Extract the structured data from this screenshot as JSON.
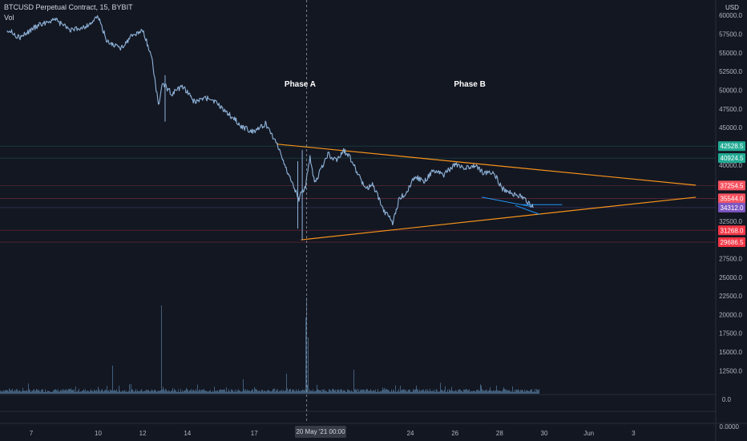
{
  "header": {
    "symbol_line": "BTCUSD Perpetual Contract, 15, BYBIT",
    "volume_label": "Vol"
  },
  "currency": "USD",
  "crosshair_date_label": "20 May '21  00:00",
  "chart_data": {
    "type": "line",
    "title": "BTCUSD Perpetual Contract, 15, BYBIT",
    "yaxis_ticks": [
      60000,
      57500,
      55000,
      52500,
      50000,
      47500,
      45000,
      42500,
      40000,
      37500,
      35000,
      32500,
      30000,
      27500,
      25000,
      22500,
      20000,
      17500,
      15000,
      12500
    ],
    "ylim": [
      10800,
      61000
    ],
    "xaxis_ticks": [
      "7",
      "10",
      "12",
      "14",
      "17",
      "24",
      "26",
      "28",
      "30",
      "Jun",
      "3"
    ],
    "xlim_days_may": [
      5.9,
      36.8
    ],
    "volume_axis_ticks": [
      "0.0",
      "0.0000"
    ],
    "price_series_approx": {
      "x_day": [
        5.9,
        6.5,
        7.2,
        8.0,
        8.8,
        9.5,
        10.0,
        10.4,
        11.0,
        11.5,
        12.0,
        12.4,
        12.7,
        12.9,
        13.3,
        13.8,
        14.3,
        15.0,
        15.8,
        16.5,
        17.0,
        17.5,
        18.0,
        18.5,
        19.0,
        19.3,
        19.5,
        19.7,
        19.8,
        20.0,
        20.3,
        20.7,
        21.0,
        21.3,
        21.7,
        22.0,
        22.3,
        22.8,
        23.2,
        23.5,
        23.8,
        24.2,
        24.6,
        25.0,
        25.5,
        26.0,
        26.5,
        27.0,
        27.3,
        27.7,
        28.1,
        28.5,
        28.9,
        29.2,
        29.5
      ],
      "y": [
        58200,
        57000,
        58500,
        59500,
        58000,
        58600,
        59800,
        56500,
        55600,
        57200,
        58000,
        54500,
        48000,
        51000,
        49500,
        50500,
        48500,
        49000,
        47000,
        45000,
        44500,
        45500,
        43000,
        39000,
        35500,
        37200,
        41000,
        37500,
        38200,
        39500,
        41500,
        40500,
        42000,
        41000,
        38500,
        36800,
        37500,
        34000,
        32300,
        35500,
        36200,
        38500,
        37800,
        39200,
        38700,
        40100,
        39600,
        39800,
        38800,
        39200,
        36900,
        36300,
        35800,
        35200,
        34300
      ]
    },
    "annotations": [
      {
        "text": "Phase A"
      },
      {
        "text": "Phase B"
      }
    ],
    "price_labels": [
      {
        "value": "42528.5",
        "color": "#22ab94"
      },
      {
        "value": "40924.5",
        "color": "#22ab94"
      },
      {
        "value": "37254.5",
        "color": "#f7525f"
      },
      {
        "value": "35544.0",
        "color": "#f7525f"
      },
      {
        "value": "34312.0",
        "color": "#7e57c2"
      },
      {
        "value": "31268.0",
        "color": "#f23645"
      },
      {
        "value": "29686.5",
        "color": "#f23645"
      }
    ],
    "trendlines": [
      {
        "name": "upper",
        "points": [
          [
            18.0,
            42800
          ],
          [
            36.8,
            37300
          ]
        ],
        "color": "#f7931a"
      },
      {
        "name": "lower",
        "points": [
          [
            19.1,
            30000
          ],
          [
            36.8,
            35700
          ]
        ],
        "color": "#f7931a"
      }
    ],
    "grid": false
  }
}
